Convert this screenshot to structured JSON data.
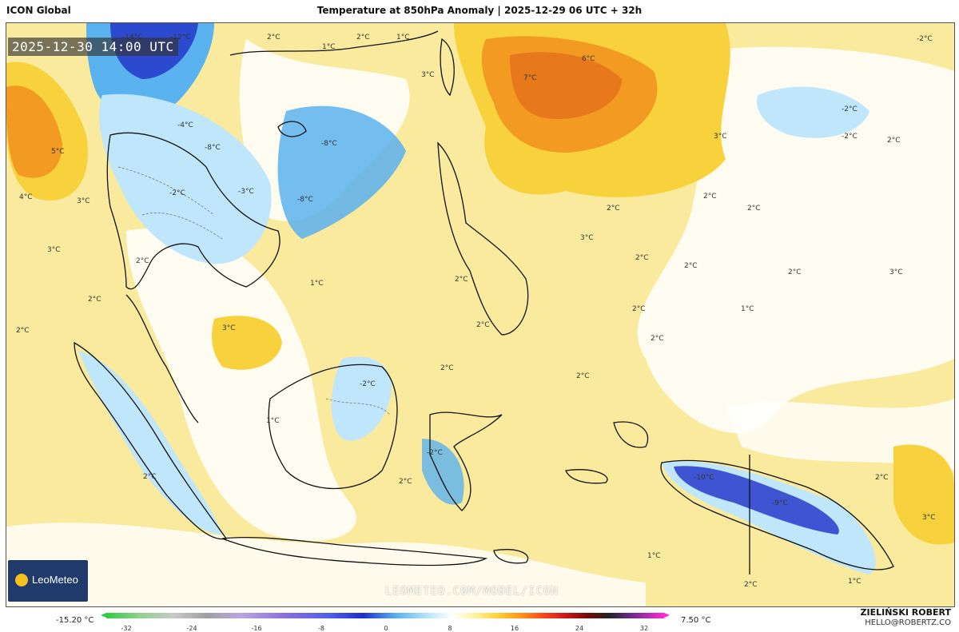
{
  "header": {
    "model": "ICON Global",
    "title": "Temperature at 850hPa Anomaly | 2025-12-29 06 UTC + 32h"
  },
  "map": {
    "valid_time": "2025-12-30 14:00 UTC",
    "watermark": "LEOMETEO.COM/MODEL/ICON",
    "logo_text": "LeoMeteo",
    "labels": [
      "-12°C",
      "-14°C",
      "2°C",
      "1°C",
      "2°C",
      "1°C",
      "-2°C",
      "6°C",
      "7°C",
      "3°C",
      "-2°C",
      "-4°C",
      "-8°C",
      "-8°C",
      "-8°C",
      "5°C",
      "4°C",
      "3°C",
      "3°C",
      "-2°C",
      "-3°C",
      "2°C",
      "2°C",
      "2°C",
      "3°C",
      "1°C",
      "2°C",
      "3°C",
      "2°C",
      "2°C",
      "2°C",
      "3°C",
      "2°C",
      "2°C",
      "2°C",
      "2°C",
      "-2°C",
      "3°C",
      "2°C",
      "2°C",
      "2°C",
      "1°C",
      "-2°C",
      "2°C",
      "2°C",
      "1°C",
      "-10°C",
      "-9°C",
      "2°C",
      "3°C",
      "1°C",
      "2°C",
      "-2°C",
      "2°C",
      "2°C",
      "1°C"
    ],
    "colors": {
      "warm": "#f9ea9e",
      "warmer": "#f7d23c",
      "hot": "#f29a22",
      "hottest": "#e8781c",
      "neutral": "#ffffff",
      "cool": "#bfe6fa",
      "cold": "#5ab2ee",
      "colder": "#1f2fc8",
      "land_line": "#111111"
    }
  },
  "footer": {
    "min_value": "-15.20 °C",
    "max_value": "7.50 °C",
    "ticks": [
      "-32",
      "-24",
      "-16",
      "-8",
      "0",
      "8",
      "16",
      "24",
      "32"
    ],
    "author": "ZIELIŃSKI ROBERT",
    "email": "HELLO@ROBERTZ.CO"
  }
}
